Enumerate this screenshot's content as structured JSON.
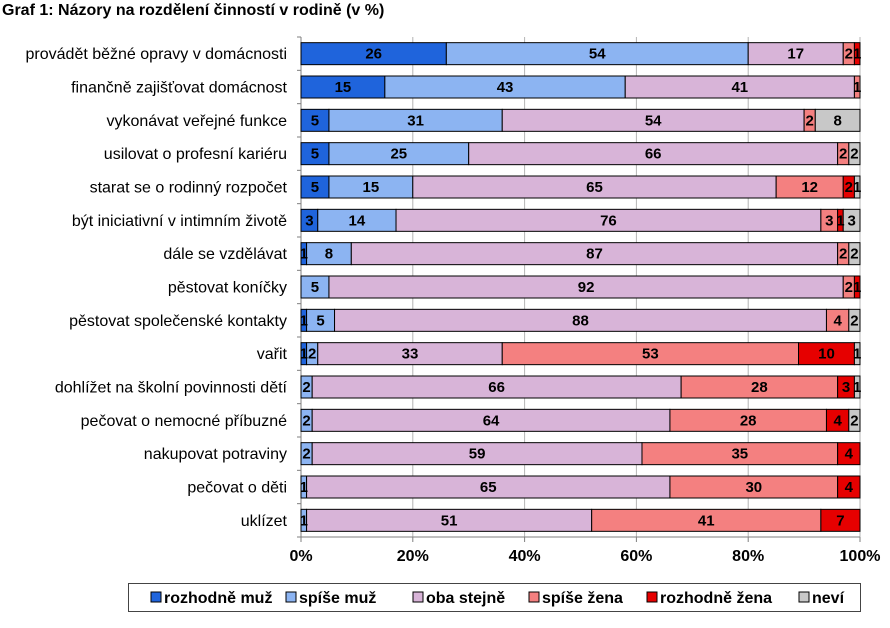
{
  "chart_data": {
    "type": "bar",
    "orientation": "horizontal",
    "stacked": "percent",
    "title": "Graf 1: Názory na rozdělení činností v rodině (v %)",
    "categories": [
      "provádět běžné opravy v domácnosti",
      "finančně zajišťovat domácnost",
      "vykonávat veřejné funkce",
      "usilovat o profesní kariéru",
      "starat se o rodinný rozpočet",
      "být iniciativní v intimním životě",
      "dále se vzdělávat",
      "pěstovat koníčky",
      "pěstovat společenské kontakty",
      "vařit",
      "dohlížet na školní povinnosti dětí",
      "pečovat o nemocné příbuzné",
      "nakupovat potraviny",
      "pečovat o děti",
      "uklízet"
    ],
    "series": [
      {
        "name": "rozhodně muž",
        "color": "#1f64dc",
        "values": [
          26,
          15,
          5,
          5,
          5,
          3,
          1,
          0,
          1,
          1,
          0,
          0,
          0,
          0,
          0
        ]
      },
      {
        "name": "spíše muž",
        "color": "#8cb4f2",
        "values": [
          54,
          43,
          31,
          25,
          15,
          14,
          8,
          5,
          5,
          2,
          2,
          2,
          2,
          1,
          1
        ]
      },
      {
        "name": "oba stejně",
        "color": "#d8b4d8",
        "values": [
          17,
          41,
          54,
          66,
          65,
          76,
          87,
          92,
          88,
          33,
          66,
          64,
          59,
          65,
          51
        ]
      },
      {
        "name": "spíše žena",
        "color": "#f48080",
        "values": [
          2,
          1,
          2,
          2,
          12,
          3,
          2,
          2,
          4,
          53,
          28,
          28,
          35,
          30,
          41
        ]
      },
      {
        "name": "rozhodně žena",
        "color": "#e60000",
        "values": [
          1,
          0,
          0,
          0,
          2,
          1,
          0,
          1,
          0,
          10,
          3,
          4,
          4,
          4,
          7
        ]
      },
      {
        "name": "neví",
        "color": "#c8c8c8",
        "values": [
          0,
          0,
          8,
          2,
          1,
          3,
          2,
          0,
          2,
          1,
          1,
          2,
          0,
          0,
          0
        ]
      }
    ],
    "xlim": [
      0,
      100
    ],
    "x_ticks": [
      0,
      20,
      40,
      60,
      80,
      100
    ],
    "x_tick_labels": [
      "0%",
      "20%",
      "40%",
      "60%",
      "80%",
      "100%"
    ],
    "grid": true,
    "legend": "bottom"
  }
}
